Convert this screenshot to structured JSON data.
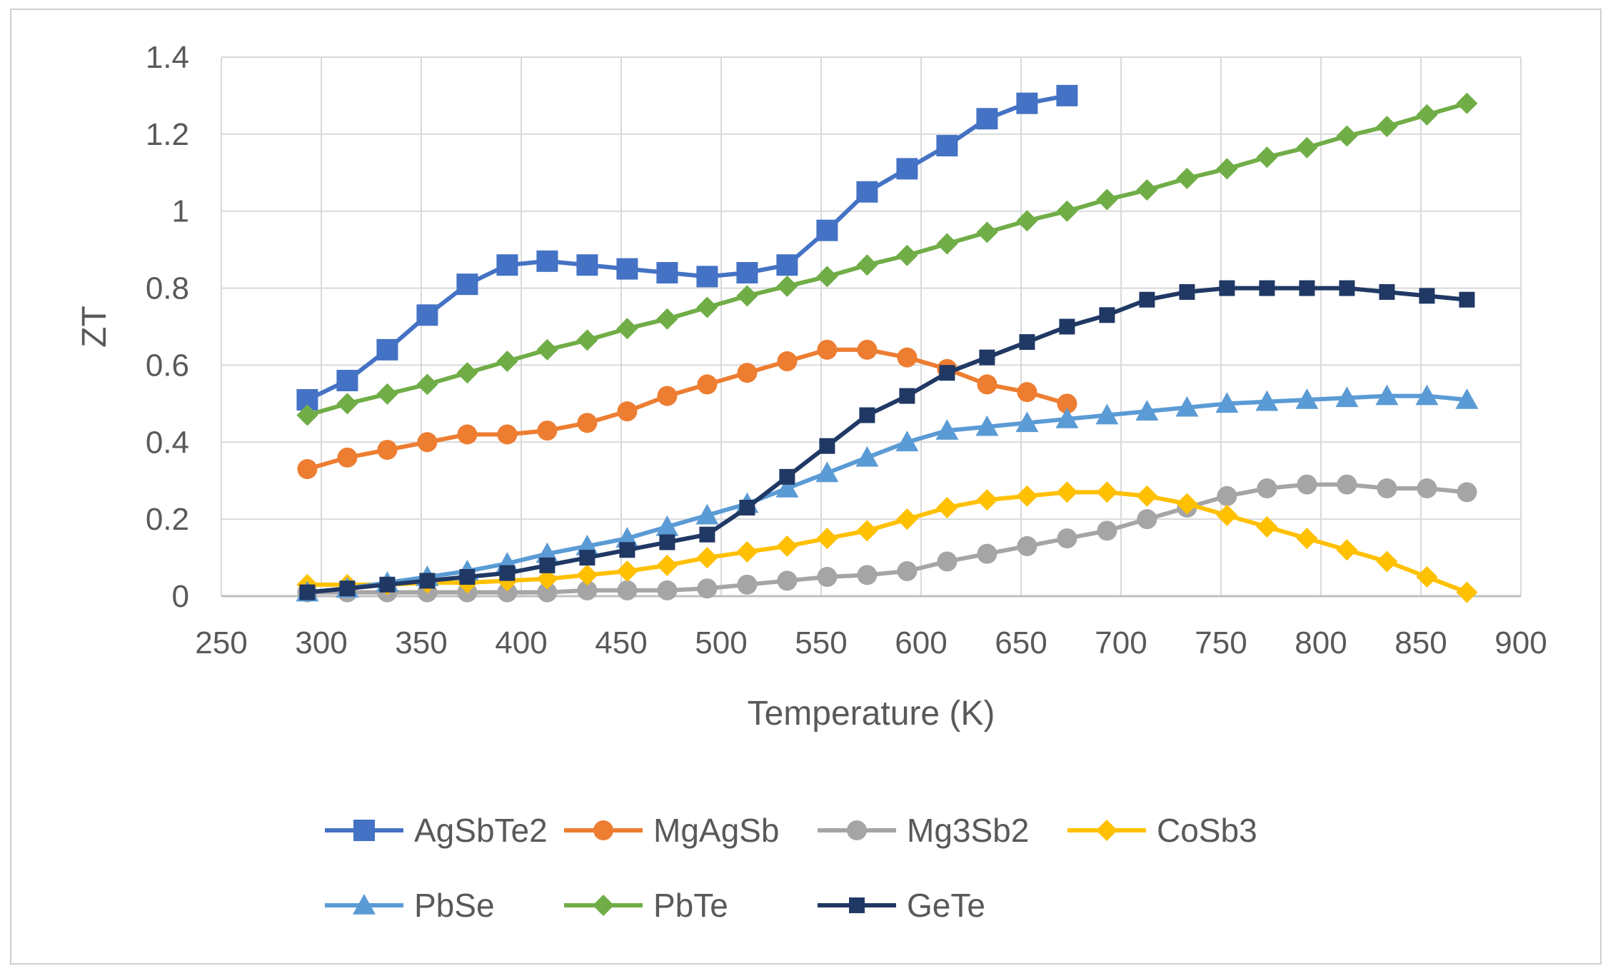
{
  "chart_data": {
    "type": "line",
    "title": "",
    "xlabel": "Temperature (K)",
    "ylabel": "ZT",
    "xlim": [
      250,
      900
    ],
    "ylim": [
      0,
      1.4
    ],
    "xticks": [
      250,
      300,
      350,
      400,
      450,
      500,
      550,
      600,
      650,
      700,
      750,
      800,
      850,
      900
    ],
    "yticks": [
      0,
      0.2,
      0.4,
      0.6,
      0.8,
      1,
      1.2,
      1.4
    ],
    "xtick_labels": [
      "250",
      "300",
      "350",
      "400",
      "450",
      "500",
      "550",
      "600",
      "650",
      "700",
      "750",
      "800",
      "850",
      "900"
    ],
    "ytick_labels": [
      "0",
      "0.2",
      "0.4",
      "0.6",
      "0.8",
      "1",
      "1.2",
      "1.4"
    ],
    "grid": true,
    "legend_position": "bottom",
    "series": [
      {
        "name": "AgSbTe2",
        "color": "#4472C4",
        "marker": "square-large",
        "x": [
          293,
          313,
          333,
          353,
          373,
          393,
          413,
          433,
          453,
          473,
          493,
          513,
          533,
          553,
          573,
          593,
          613,
          633,
          653,
          673
        ],
        "y": [
          0.51,
          0.56,
          0.64,
          0.73,
          0.81,
          0.86,
          0.87,
          0.86,
          0.85,
          0.84,
          0.83,
          0.84,
          0.86,
          0.95,
          1.05,
          1.11,
          1.17,
          1.24,
          1.28,
          1.3
        ]
      },
      {
        "name": "MgAgSb",
        "color": "#ED7D31",
        "marker": "circle",
        "x": [
          293,
          313,
          333,
          353,
          373,
          393,
          413,
          433,
          453,
          473,
          493,
          513,
          533,
          553,
          573,
          593,
          613,
          633,
          653,
          673
        ],
        "y": [
          0.33,
          0.36,
          0.38,
          0.4,
          0.42,
          0.42,
          0.43,
          0.45,
          0.48,
          0.52,
          0.55,
          0.58,
          0.61,
          0.64,
          0.64,
          0.62,
          0.59,
          0.55,
          0.53,
          0.5
        ]
      },
      {
        "name": "Mg3Sb2",
        "color": "#A5A5A5",
        "marker": "circle",
        "x": [
          293,
          313,
          333,
          353,
          373,
          393,
          413,
          433,
          453,
          473,
          493,
          513,
          533,
          553,
          573,
          593,
          613,
          633,
          653,
          673,
          693,
          713,
          733,
          753,
          773,
          793,
          813,
          833,
          853,
          873
        ],
        "y": [
          0.01,
          0.01,
          0.01,
          0.01,
          0.01,
          0.01,
          0.01,
          0.015,
          0.015,
          0.015,
          0.02,
          0.03,
          0.04,
          0.05,
          0.055,
          0.065,
          0.09,
          0.11,
          0.13,
          0.15,
          0.17,
          0.2,
          0.23,
          0.26,
          0.28,
          0.29,
          0.29,
          0.28,
          0.28,
          0.27
        ]
      },
      {
        "name": "CoSb3",
        "color": "#FFC000",
        "marker": "diamond",
        "x": [
          293,
          313,
          333,
          353,
          373,
          393,
          413,
          433,
          453,
          473,
          493,
          513,
          533,
          553,
          573,
          593,
          613,
          633,
          653,
          673,
          693,
          713,
          733,
          753,
          773,
          793,
          813,
          833,
          853,
          873
        ],
        "y": [
          0.03,
          0.03,
          0.03,
          0.035,
          0.035,
          0.04,
          0.045,
          0.055,
          0.065,
          0.08,
          0.1,
          0.115,
          0.13,
          0.15,
          0.17,
          0.2,
          0.23,
          0.25,
          0.26,
          0.27,
          0.27,
          0.26,
          0.24,
          0.21,
          0.18,
          0.15,
          0.12,
          0.09,
          0.05,
          0.01
        ]
      },
      {
        "name": "PbSe",
        "color": "#5B9BD5",
        "marker": "triangle",
        "x": [
          293,
          313,
          333,
          353,
          373,
          393,
          413,
          433,
          453,
          473,
          493,
          513,
          533,
          553,
          573,
          593,
          613,
          633,
          653,
          673,
          693,
          713,
          733,
          753,
          773,
          793,
          813,
          833,
          853,
          873
        ],
        "y": [
          0.01,
          0.02,
          0.035,
          0.05,
          0.065,
          0.085,
          0.11,
          0.13,
          0.15,
          0.18,
          0.21,
          0.24,
          0.28,
          0.32,
          0.36,
          0.4,
          0.43,
          0.44,
          0.45,
          0.46,
          0.47,
          0.48,
          0.49,
          0.5,
          0.505,
          0.51,
          0.515,
          0.52,
          0.52,
          0.51
        ]
      },
      {
        "name": "PbTe",
        "color": "#70AD47",
        "marker": "diamond",
        "x": [
          293,
          313,
          333,
          353,
          373,
          393,
          413,
          433,
          453,
          473,
          493,
          513,
          533,
          553,
          573,
          593,
          613,
          633,
          653,
          673,
          693,
          713,
          733,
          753,
          773,
          793,
          813,
          833,
          853,
          873
        ],
        "y": [
          0.47,
          0.5,
          0.525,
          0.55,
          0.58,
          0.61,
          0.64,
          0.665,
          0.695,
          0.72,
          0.75,
          0.78,
          0.805,
          0.83,
          0.86,
          0.885,
          0.915,
          0.945,
          0.975,
          1.0,
          1.03,
          1.055,
          1.085,
          1.11,
          1.14,
          1.165,
          1.195,
          1.22,
          1.25,
          1.28
        ]
      },
      {
        "name": "GeTe",
        "color": "#203864",
        "marker": "square-small",
        "x": [
          293,
          313,
          333,
          353,
          373,
          393,
          413,
          433,
          453,
          473,
          493,
          513,
          533,
          553,
          573,
          593,
          613,
          633,
          653,
          673,
          693,
          713,
          733,
          753,
          773,
          793,
          813,
          833,
          853,
          873
        ],
        "y": [
          0.01,
          0.02,
          0.03,
          0.04,
          0.05,
          0.06,
          0.08,
          0.1,
          0.12,
          0.14,
          0.16,
          0.23,
          0.31,
          0.39,
          0.47,
          0.52,
          0.58,
          0.62,
          0.66,
          0.7,
          0.73,
          0.77,
          0.79,
          0.8,
          0.8,
          0.8,
          0.8,
          0.79,
          0.78,
          0.77
        ]
      }
    ]
  }
}
